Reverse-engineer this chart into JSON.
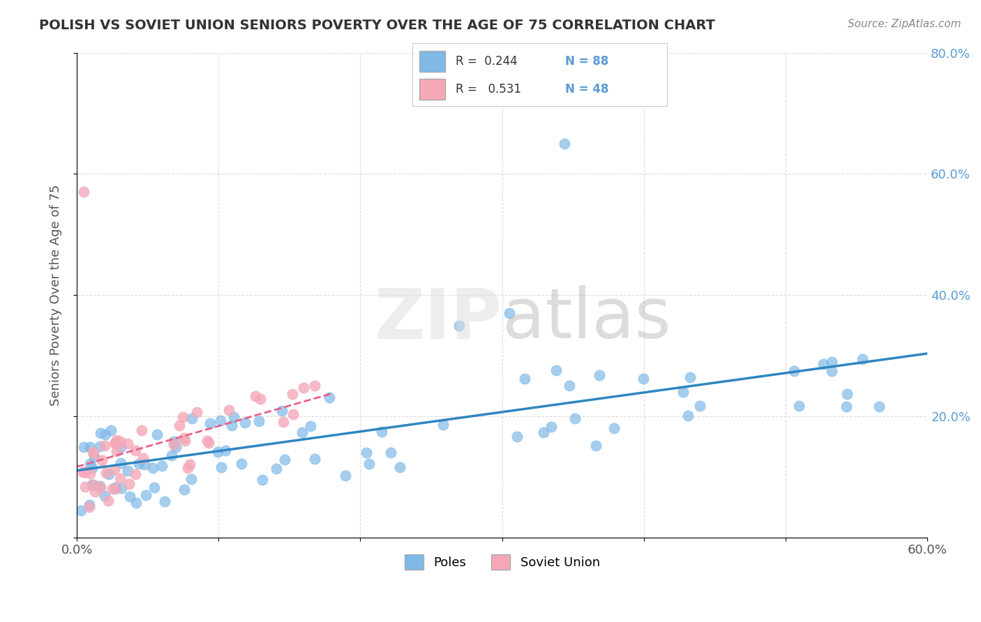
{
  "title": "POLISH VS SOVIET UNION SENIORS POVERTY OVER THE AGE OF 75 CORRELATION CHART",
  "source": "Source: ZipAtlas.com",
  "ylabel": "Seniors Poverty Over the Age of 75",
  "xlim": [
    0.0,
    0.6
  ],
  "ylim": [
    0.0,
    0.8
  ],
  "poles_color": "#7EB9E8",
  "soviet_color": "#F4A8B8",
  "poles_line_color": "#2E86C1",
  "soviet_line_color": "#E8608A",
  "legend_R1": "0.244",
  "legend_N1": "88",
  "legend_R2": "0.531",
  "legend_N2": "48",
  "background_color": "#FFFFFF",
  "grid_color": "#CCCCCC",
  "title_color": "#333333",
  "axis_label_color": "#555555",
  "right_ytick_color": "#5B9BD5"
}
